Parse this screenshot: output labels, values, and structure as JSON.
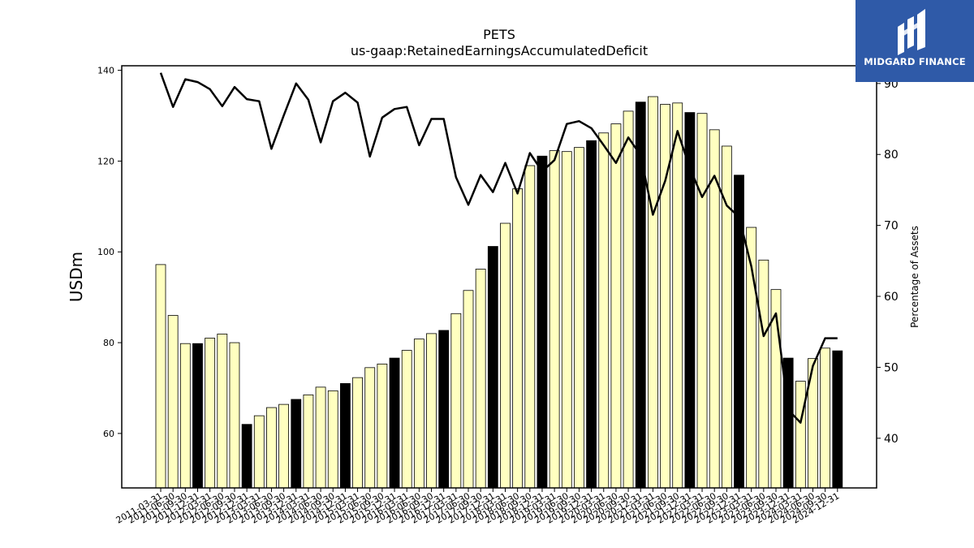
{
  "brand": {
    "name": "MIDGARD FINANCE"
  },
  "chart_data": {
    "type": "bar",
    "title": "PETS",
    "subtitle": "us-gaap:RetainedEarningsAccumulatedDeficit",
    "ylabel": "USDm",
    "y2label": "Percentage of Assets",
    "ylim": [
      48,
      141
    ],
    "y2lim": [
      33,
      92.5
    ],
    "yticks": [
      60,
      80,
      100,
      120,
      140
    ],
    "y2ticks": [
      40,
      50,
      60,
      70,
      80,
      90
    ],
    "grid": false,
    "colors": {
      "bar": "#ffffc0",
      "bar_fy": "#000000",
      "line": "#000000",
      "edge": "#000000"
    },
    "categories": [
      "2011-03-31",
      "2011-06-30",
      "2011-09-30",
      "2011-12-31",
      "2012-03-31",
      "2012-06-30",
      "2012-09-30",
      "2012-12-31",
      "2013-03-31",
      "2013-06-30",
      "2013-09-30",
      "2013-12-31",
      "2014-03-31",
      "2014-06-30",
      "2014-09-30",
      "2014-12-31",
      "2015-03-31",
      "2015-06-30",
      "2015-09-30",
      "2015-12-31",
      "2016-03-31",
      "2016-06-30",
      "2016-09-30",
      "2016-12-31",
      "2017-03-31",
      "2017-06-30",
      "2017-09-30",
      "2017-12-31",
      "2018-03-31",
      "2018-06-30",
      "2018-09-30",
      "2018-12-31",
      "2019-03-31",
      "2019-06-30",
      "2019-09-30",
      "2019-12-31",
      "2020-03-31",
      "2020-06-30",
      "2020-09-30",
      "2020-12-31",
      "2021-03-31",
      "2021-06-30",
      "2021-09-30",
      "2021-12-31",
      "2022-03-31",
      "2022-06-30",
      "2022-09-30",
      "2022-12-31",
      "2023-03-31",
      "2023-06-30",
      "2023-09-30",
      "2023-12-31",
      "2024-03-31",
      "2024-06-30",
      "2024-09-30",
      "2024-12-31"
    ],
    "series": [
      {
        "kind": "bar",
        "values": [
          97.2,
          86.0,
          79.8,
          79.8,
          81.0,
          81.9,
          80.0,
          62.0,
          63.9,
          65.7,
          66.4,
          67.5,
          68.5,
          70.2,
          69.4,
          71.0,
          72.3,
          74.5,
          75.3,
          76.6,
          78.3,
          80.8,
          82.0,
          82.7,
          86.4,
          91.5,
          96.2,
          101.2,
          106.3,
          113.9,
          119.0,
          121.1,
          122.3,
          122.1,
          123.0,
          124.5,
          126.2,
          128.2,
          131.0,
          133.0,
          134.2,
          132.5,
          132.8,
          130.7,
          130.5,
          126.9,
          123.3,
          116.9,
          105.4,
          98.2,
          91.7,
          76.6,
          71.5,
          76.5,
          78.8,
          78.2
        ],
        "fiscal_year_end": [
          false,
          false,
          false,
          true,
          false,
          false,
          false,
          true,
          false,
          false,
          false,
          true,
          false,
          false,
          false,
          true,
          false,
          false,
          false,
          true,
          false,
          false,
          false,
          true,
          false,
          false,
          false,
          true,
          false,
          false,
          false,
          true,
          false,
          false,
          false,
          true,
          false,
          false,
          false,
          true,
          false,
          false,
          false,
          true,
          false,
          false,
          false,
          true,
          false,
          false,
          false,
          true,
          false,
          false,
          false,
          true
        ]
      },
      {
        "kind": "line",
        "axis": "right",
        "values": [
          91.5,
          86.7,
          90.6,
          90.2,
          89.2,
          86.8,
          89.5,
          87.8,
          87.5,
          80.8,
          85.5,
          90.0,
          87.7,
          81.7,
          87.5,
          88.7,
          87.3,
          79.7,
          85.2,
          86.4,
          86.7,
          81.3,
          85.0,
          85.0,
          76.8,
          72.9,
          77.1,
          74.7,
          78.8,
          74.5,
          80.2,
          77.6,
          79.2,
          84.3,
          84.7,
          83.7,
          81.3,
          78.8,
          82.4,
          79.9,
          71.5,
          76.3,
          83.3,
          78.1,
          74.0,
          77.0,
          72.8,
          71.2,
          64.2,
          54.4,
          57.6,
          44.0,
          42.2,
          50.2,
          54.1,
          54.1
        ]
      }
    ]
  }
}
